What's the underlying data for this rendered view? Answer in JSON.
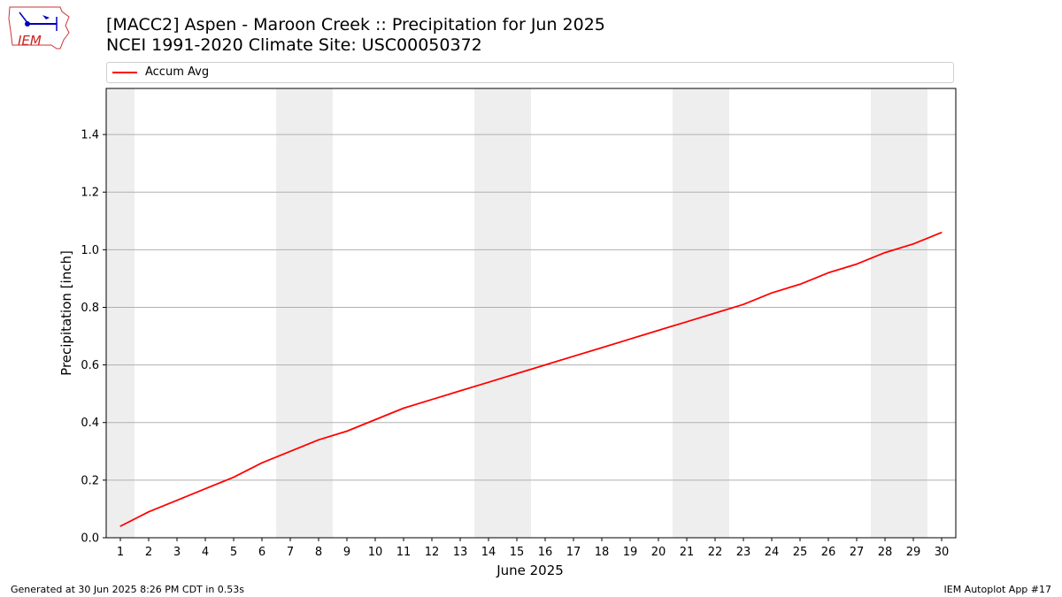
{
  "header": {
    "title_line1": "[MACC2] Aspen - Maroon Creek :: Precipitation for Jun 2025",
    "title_line2": "NCEI 1991-2020 Climate Site: USC00050372"
  },
  "logo": {
    "text": "IEM"
  },
  "footer": {
    "generated": "Generated at 30 Jun 2025 8:26 PM CDT in 0.53s",
    "app": "IEM Autoplot App #17"
  },
  "colors": {
    "line": "#ff0000",
    "weekend_shade": "#eeeeee",
    "grid": "#b0b0b0"
  },
  "chart_data": {
    "type": "line",
    "xlabel": "June 2025",
    "ylabel": "Precipitation [inch]",
    "xlim": [
      0.5,
      30.5
    ],
    "ylim": [
      0,
      1.56
    ],
    "yticks": [
      0.0,
      0.2,
      0.4,
      0.6,
      0.8,
      1.0,
      1.2,
      1.4
    ],
    "ytick_labels": [
      "0.0",
      "0.2",
      "0.4",
      "0.6",
      "0.8",
      "1.0",
      "1.2",
      "1.4"
    ],
    "x": [
      1,
      2,
      3,
      4,
      5,
      6,
      7,
      8,
      9,
      10,
      11,
      12,
      13,
      14,
      15,
      16,
      17,
      18,
      19,
      20,
      21,
      22,
      23,
      24,
      25,
      26,
      27,
      28,
      29,
      30
    ],
    "xtick_labels": [
      "1",
      "2",
      "3",
      "4",
      "5",
      "6",
      "7",
      "8",
      "9",
      "10",
      "11",
      "12",
      "13",
      "14",
      "15",
      "16",
      "17",
      "18",
      "19",
      "20",
      "21",
      "22",
      "23",
      "24",
      "25",
      "26",
      "27",
      "28",
      "29",
      "30"
    ],
    "grid": "horizontal",
    "legend_position": "top",
    "shaded_weekend_days": [
      [
        1
      ],
      [
        7,
        8
      ],
      [
        14,
        15
      ],
      [
        21,
        22
      ],
      [
        28,
        29
      ]
    ],
    "series": [
      {
        "name": "Accum Avg",
        "color": "#ff0000",
        "values": [
          0.04,
          0.09,
          0.13,
          0.17,
          0.21,
          0.26,
          0.3,
          0.34,
          0.37,
          0.41,
          0.45,
          0.48,
          0.51,
          0.54,
          0.57,
          0.6,
          0.63,
          0.66,
          0.69,
          0.72,
          0.75,
          0.78,
          0.81,
          0.85,
          0.88,
          0.92,
          0.95,
          0.99,
          1.02,
          1.06
        ]
      }
    ]
  }
}
